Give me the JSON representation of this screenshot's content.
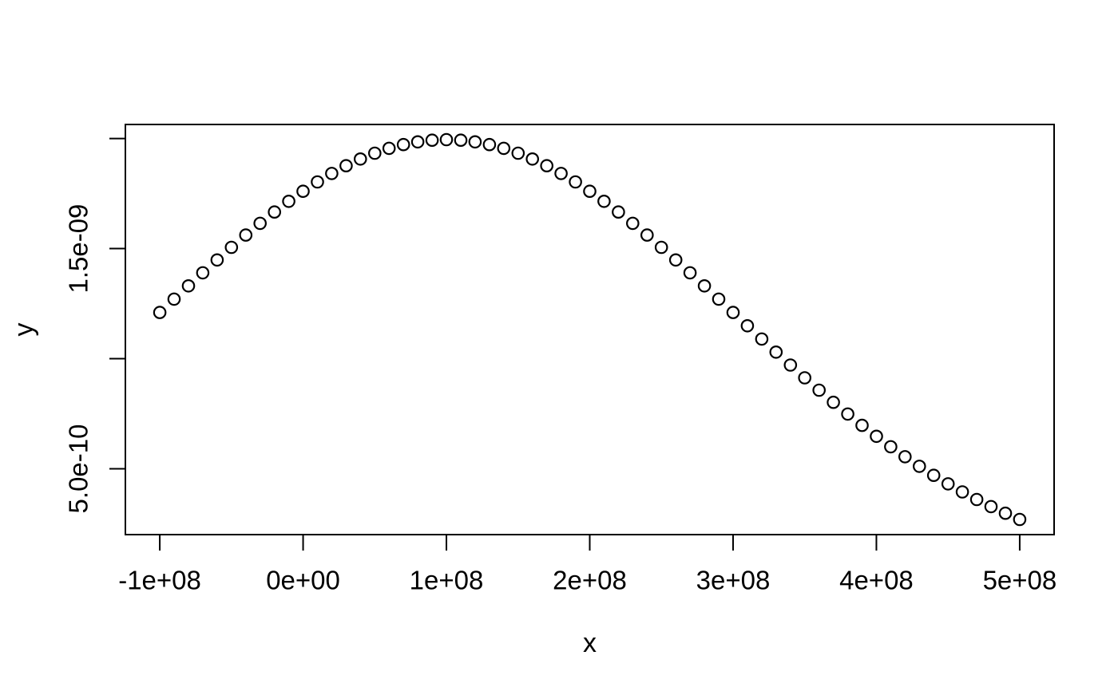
{
  "figure": {
    "background_color": "#ffffff",
    "axis_color": "#000000",
    "point_color": "#000000"
  },
  "chart_data": {
    "type": "scatter",
    "title": "",
    "xlabel": "x",
    "ylabel": "y",
    "marker": "open-circle",
    "grid": false,
    "legend_position": "none",
    "xlim": [
      -124000000,
      524000000
    ],
    "ylim": [
      2.0096e-10,
      2.0637e-09
    ],
    "x_ticks": [
      {
        "value": -100000000,
        "label": "-1e+08"
      },
      {
        "value": 0,
        "label": "0e+00"
      },
      {
        "value": 100000000,
        "label": "1e+08"
      },
      {
        "value": 200000000,
        "label": "2e+08"
      },
      {
        "value": 300000000,
        "label": "3e+08"
      },
      {
        "value": 400000000,
        "label": "4e+08"
      },
      {
        "value": 500000000,
        "label": "5e+08"
      }
    ],
    "y_ticks": [
      {
        "value": 5e-10,
        "label": "5.0e-10"
      },
      {
        "value": 1e-09,
        "label": ""
      },
      {
        "value": 1.5e-09,
        "label": "1.5e-09"
      },
      {
        "value": 2e-09,
        "label": ""
      }
    ],
    "x": [
      -100000000,
      -90000000,
      -80000000,
      -70000000,
      -60000000,
      -50000000,
      -40000000,
      -30000000,
      -20000000,
      -10000000,
      0,
      10000000,
      20000000,
      30000000,
      40000000,
      50000000,
      60000000,
      70000000,
      80000000,
      90000000,
      100000000,
      110000000,
      120000000,
      130000000,
      140000000,
      150000000,
      160000000,
      170000000,
      180000000,
      190000000,
      200000000,
      210000000,
      220000000,
      230000000,
      240000000,
      250000000,
      260000000,
      270000000,
      280000000,
      290000000,
      300000000,
      310000000,
      320000000,
      330000000,
      340000000,
      350000000,
      360000000,
      370000000,
      380000000,
      390000000,
      400000000,
      410000000,
      420000000,
      430000000,
      440000000,
      450000000,
      460000000,
      470000000,
      480000000,
      490000000,
      500000000
    ],
    "y": [
      1.20985e-09,
      1.27029e-09,
      1.33043e-09,
      1.38991e-09,
      1.44846e-09,
      1.50569e-09,
      1.56126e-09,
      1.61486e-09,
      1.66612e-09,
      1.71471e-09,
      1.76032e-09,
      1.80263e-09,
      1.84135e-09,
      1.8762e-09,
      1.90694e-09,
      1.93333e-09,
      1.95521e-09,
      1.97239e-09,
      1.98476e-09,
      1.99222e-09,
      1.99471e-09,
      1.99222e-09,
      1.98476e-09,
      1.97239e-09,
      1.95521e-09,
      1.93333e-09,
      1.90694e-09,
      1.8762e-09,
      1.84135e-09,
      1.80263e-09,
      1.76032e-09,
      1.71471e-09,
      1.66612e-09,
      1.61486e-09,
      1.56126e-09,
      1.50569e-09,
      1.44846e-09,
      1.38991e-09,
      1.33043e-09,
      1.27029e-09,
      1.20985e-09,
      1.14933e-09,
      1.08926e-09,
      1.02968e-09,
      9.7093e-10,
      9.13246e-10,
      8.56846e-10,
      8.01918e-10,
      7.48637e-10,
      6.97154e-10,
      6.47588e-10,
      6.00047e-10,
      5.54605e-10,
      5.11327e-10,
      4.70246e-10,
      4.31387e-10,
      3.94752e-10,
      3.60327e-10,
      3.28081e-10,
      2.97975e-10,
      2.69955e-10
    ]
  }
}
